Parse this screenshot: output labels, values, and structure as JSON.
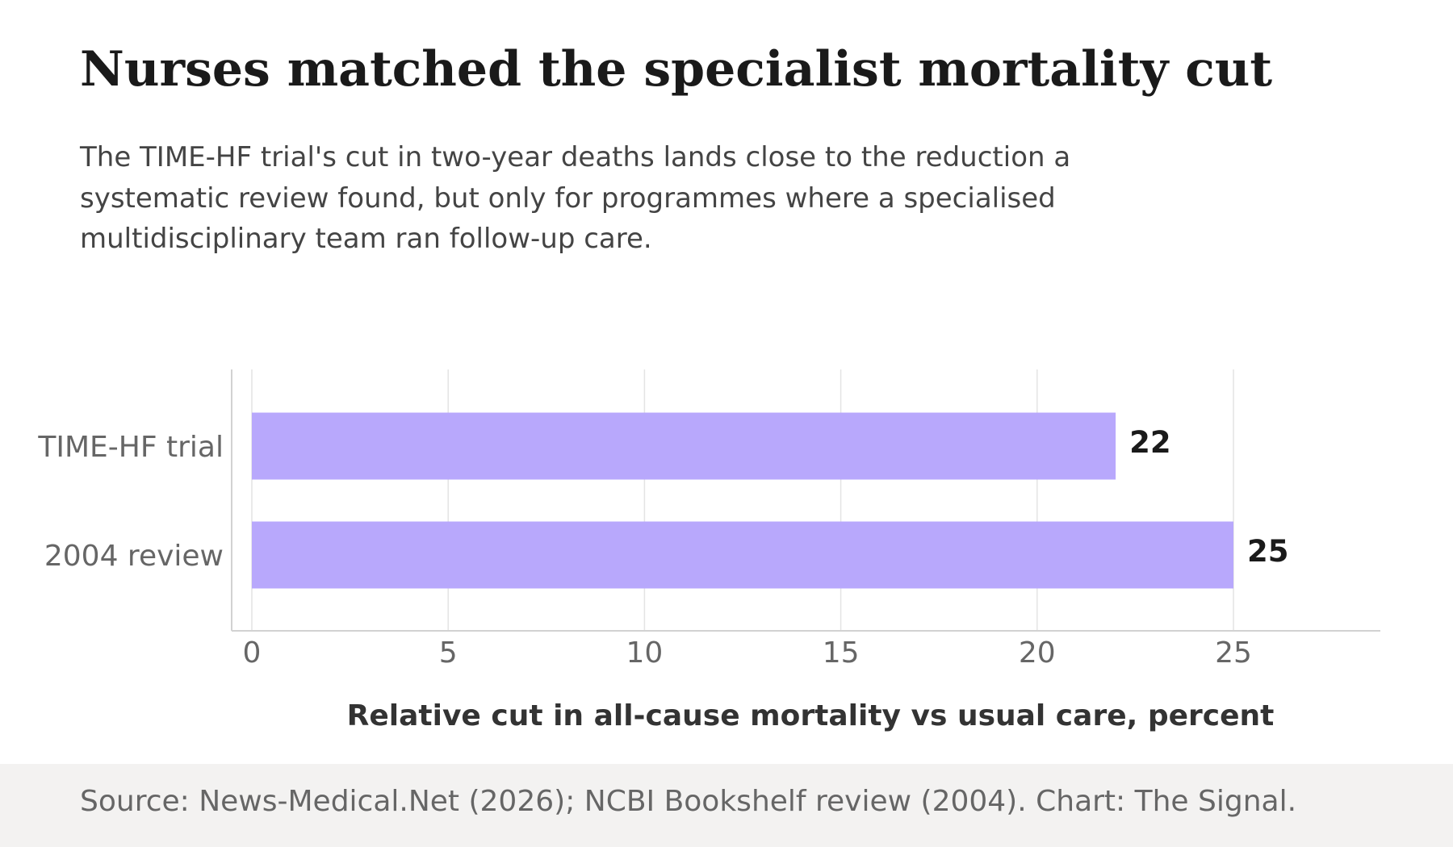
{
  "headline": "Nurses matched the specialist mortality cut",
  "subhead": "The TIME-HF trial's cut in two-year deaths lands close to the reduction a systematic review found, but only for programmes where a specialised multidisciplinary team ran follow-up care.",
  "source": "Source: News-Medical.Net (2026); NCBI Bookshelf review (2004). Chart: The Signal.",
  "colors": {
    "bar": "#b8a8fc",
    "grid": "#e4e4e4",
    "axis": "#d2d2d2",
    "tick_text": "#666666",
    "value_text": "#1a1a1a",
    "xlabel_text": "#333333",
    "footer_bg": "#f3f2f1"
  },
  "chart_data": {
    "type": "bar",
    "orientation": "horizontal",
    "categories": [
      "TIME-HF trial",
      "2004 review"
    ],
    "values": [
      22,
      25
    ],
    "xlabel": "Relative cut in all-cause mortality vs usual care, percent",
    "xlim": [
      0,
      29
    ],
    "xticks": [
      0,
      5,
      10,
      15,
      20,
      25
    ],
    "grid": true,
    "data_labels": true
  }
}
